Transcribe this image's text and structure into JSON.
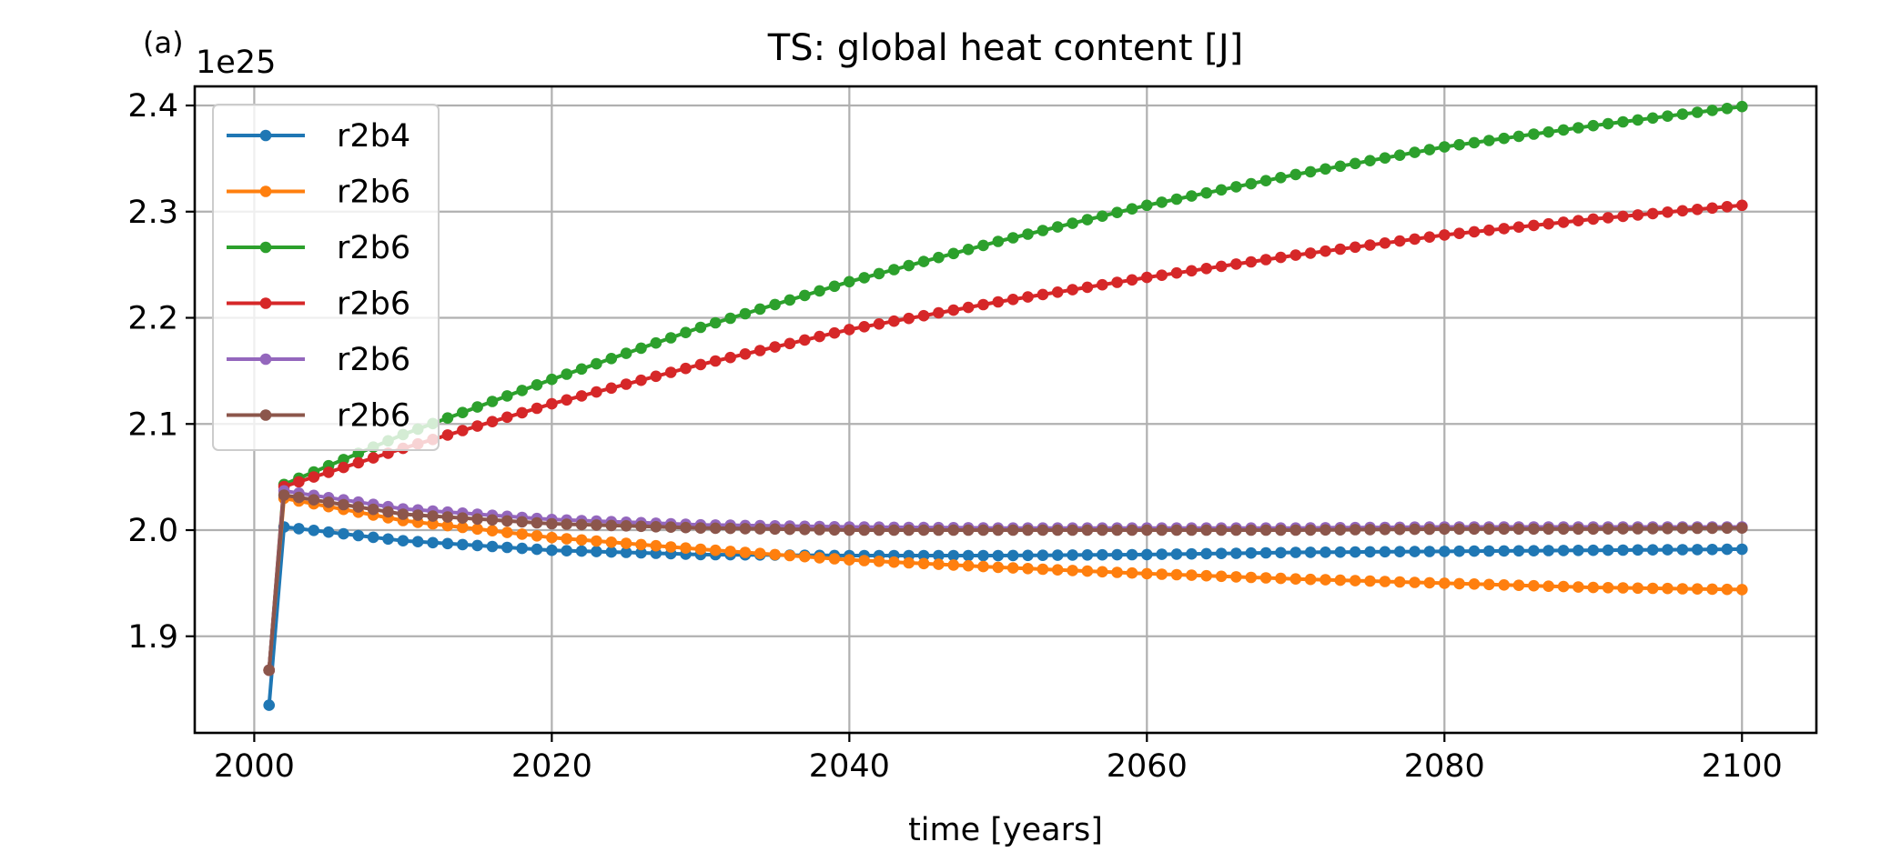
{
  "panel_label": "(a)",
  "y_offset_label": "1e25",
  "chart_data": {
    "type": "line",
    "title": "TS: global heat content [J]",
    "xlabel": "time [years]",
    "ylabel": "",
    "xlim": [
      1996,
      2105
    ],
    "ylim": [
      1.809,
      2.418
    ],
    "xticks": [
      2000,
      2020,
      2040,
      2060,
      2080,
      2100
    ],
    "yticks": [
      1.9,
      2.0,
      2.1,
      2.2,
      2.3,
      2.4
    ],
    "grid": true,
    "legend_position": "upper-left",
    "x_start": 2001,
    "x_end": 2100,
    "series": [
      {
        "name": "r2b4",
        "color": "#1f77b4",
        "first_value": 1.835,
        "keypoints": [
          [
            2002,
            2.003
          ],
          [
            2010,
            1.99
          ],
          [
            2020,
            1.981
          ],
          [
            2030,
            1.977
          ],
          [
            2040,
            1.976
          ],
          [
            2050,
            1.976
          ],
          [
            2060,
            1.977
          ],
          [
            2070,
            1.979
          ],
          [
            2080,
            1.98
          ],
          [
            2090,
            1.981
          ],
          [
            2100,
            1.982
          ]
        ]
      },
      {
        "name": "r2b6",
        "color": "#ff7f0e",
        "first_value": 1.868,
        "keypoints": [
          [
            2002,
            2.03
          ],
          [
            2010,
            2.009
          ],
          [
            2020,
            1.993
          ],
          [
            2030,
            1.982
          ],
          [
            2040,
            1.972
          ],
          [
            2050,
            1.965
          ],
          [
            2060,
            1.959
          ],
          [
            2070,
            1.954
          ],
          [
            2080,
            1.95
          ],
          [
            2090,
            1.946
          ],
          [
            2100,
            1.944
          ]
        ]
      },
      {
        "name": "r2b6",
        "color": "#2ca02c",
        "first_value": 1.868,
        "keypoints": [
          [
            2002,
            2.043
          ],
          [
            2010,
            2.09
          ],
          [
            2020,
            2.142
          ],
          [
            2030,
            2.191
          ],
          [
            2040,
            2.234
          ],
          [
            2050,
            2.272
          ],
          [
            2060,
            2.306
          ],
          [
            2070,
            2.335
          ],
          [
            2080,
            2.361
          ],
          [
            2090,
            2.381
          ],
          [
            2100,
            2.399
          ]
        ]
      },
      {
        "name": "r2b6",
        "color": "#d62728",
        "first_value": 1.868,
        "keypoints": [
          [
            2002,
            2.041
          ],
          [
            2010,
            2.077
          ],
          [
            2020,
            2.119
          ],
          [
            2030,
            2.156
          ],
          [
            2040,
            2.189
          ],
          [
            2050,
            2.215
          ],
          [
            2060,
            2.238
          ],
          [
            2070,
            2.259
          ],
          [
            2080,
            2.278
          ],
          [
            2090,
            2.293
          ],
          [
            2100,
            2.306
          ]
        ]
      },
      {
        "name": "r2b6",
        "color": "#9467bd",
        "first_value": 1.868,
        "keypoints": [
          [
            2002,
            2.037
          ],
          [
            2010,
            2.02
          ],
          [
            2020,
            2.01
          ],
          [
            2030,
            2.005
          ],
          [
            2040,
            2.003
          ],
          [
            2050,
            2.002
          ],
          [
            2060,
            2.002
          ],
          [
            2070,
            2.002
          ],
          [
            2080,
            2.003
          ],
          [
            2090,
            2.003
          ],
          [
            2100,
            2.003
          ]
        ]
      },
      {
        "name": "r2b6",
        "color": "#8c564b",
        "first_value": 1.868,
        "keypoints": [
          [
            2002,
            2.033
          ],
          [
            2010,
            2.015
          ],
          [
            2020,
            2.006
          ],
          [
            2030,
            2.002
          ],
          [
            2040,
            2.0
          ],
          [
            2050,
            2.0
          ],
          [
            2060,
            2.0
          ],
          [
            2070,
            2.0
          ],
          [
            2080,
            2.001
          ],
          [
            2090,
            2.001
          ],
          [
            2100,
            2.002
          ]
        ]
      }
    ]
  }
}
